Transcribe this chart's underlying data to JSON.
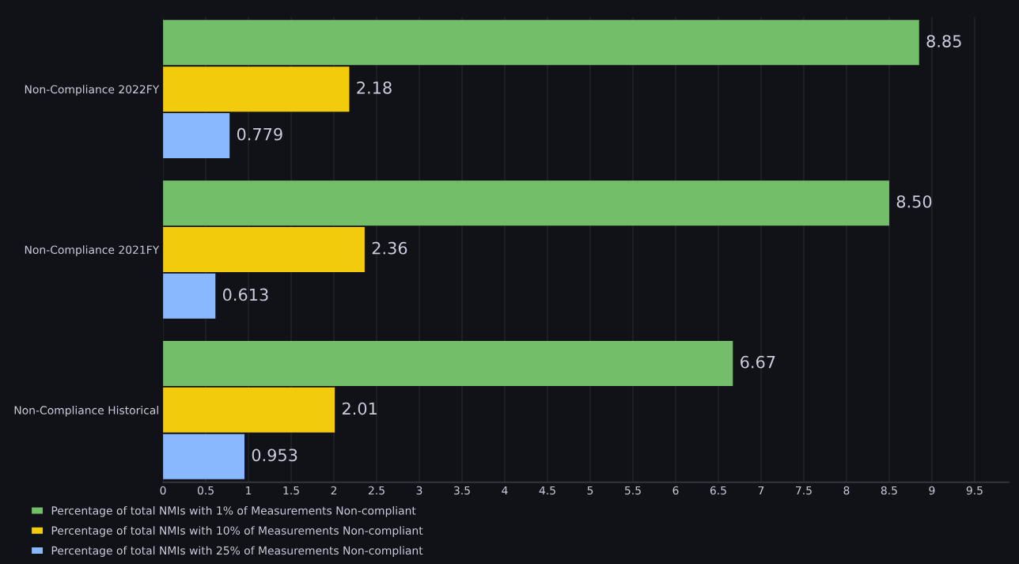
{
  "chart_data": {
    "type": "bar",
    "orientation": "horizontal",
    "categories": [
      "Non-Compliance 2022FY",
      "Non-Compliance 2021FY",
      "Non-Compliance Historical"
    ],
    "series": [
      {
        "name": "Percentage of total NMIs with 1% of Measurements Non-compliant",
        "color": "#73bf69",
        "values": [
          8.85,
          8.5,
          6.67
        ],
        "value_labels": [
          "8.85",
          "8.50",
          "6.67"
        ]
      },
      {
        "name": "Percentage of total NMIs with 10% of Measurements Non-compliant",
        "color": "#f2cc0c",
        "values": [
          2.18,
          2.36,
          2.01
        ],
        "value_labels": [
          "2.18",
          "2.36",
          "2.01"
        ]
      },
      {
        "name": "Percentage of total NMIs with 25% of Measurements Non-compliant",
        "color": "#8ab8ff",
        "values": [
          0.779,
          0.613,
          0.953
        ],
        "value_labels": [
          "0.779",
          "0.613",
          "0.953"
        ]
      }
    ],
    "xlim": [
      0,
      9.9
    ],
    "xticks": [
      0,
      0.5,
      1,
      1.5,
      2,
      2.5,
      3,
      3.5,
      4,
      4.5,
      5,
      5.5,
      6,
      6.5,
      7,
      7.5,
      8,
      8.5,
      9,
      9.5
    ],
    "grid": "x",
    "legend": "bottom"
  }
}
